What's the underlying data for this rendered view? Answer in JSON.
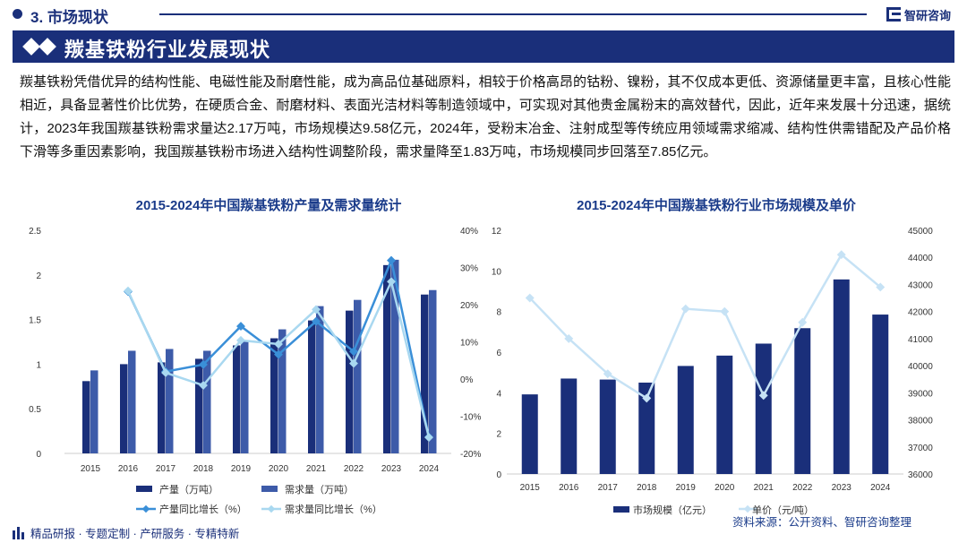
{
  "header": {
    "section_label": "3. 市场现状",
    "logo_text": "智研咨询",
    "banner_title": "羰基铁粉行业发展现状"
  },
  "body_text": "羰基铁粉凭借优异的结构性能、电磁性能及耐磨性能，成为高品位基础原料，相较于价格高昂的钴粉、镍粉，其不仅成本更低、资源储量更丰富，且核心性能相近，具备显著性价比优势，在硬质合金、耐磨材料、表面光洁材料等制造领域中，可实现对其他贵金属粉末的高效替代，因此，近年来发展十分迅速，据统计，2023年我国羰基铁粉需求量达2.17万吨，市场规模达9.58亿元，2024年，受粉末冶金、注射成型等传统应用领域需求缩减、结构性供需错配及产品价格下滑等多重因素影响，我国羰基铁粉市场进入结构性调整阶段，需求量降至1.83万吨，市场规模同步回落至7.85亿元。",
  "footer": {
    "tagline": "精品研报 · 专题定制 · 产研服务 · 专精特新",
    "source": "资料来源：公开资料、智研咨询整理"
  },
  "colors": {
    "brand": "#1a2f7a",
    "bar_production": "#1a2f7a",
    "bar_demand": "#3d5ba9",
    "line_production": "#3a8fd8",
    "line_demand": "#a9d8f0",
    "bar_market": "#1a2f7a",
    "line_price": "#c6e2f5"
  },
  "chart_data": [
    {
      "type": "bar",
      "title": "2015-2024年中国羰基铁粉产量及需求量统计",
      "categories": [
        "2015",
        "2016",
        "2017",
        "2018",
        "2019",
        "2020",
        "2021",
        "2022",
        "2023",
        "2024"
      ],
      "ylim": [
        0,
        2.5
      ],
      "yticks": [
        "0",
        "0.5",
        "1",
        "1.5",
        "2",
        "2.5"
      ],
      "y2lim": [
        -20,
        40
      ],
      "y2ticks": [
        "-20%",
        "-10%",
        "0%",
        "10%",
        "20%",
        "30%",
        "40%"
      ],
      "series": [
        {
          "name": "产量（万吨）",
          "type": "bar",
          "axis": "left",
          "values": [
            0.81,
            1.0,
            1.02,
            1.06,
            1.21,
            1.29,
            1.49,
            1.6,
            2.11,
            1.78
          ]
        },
        {
          "name": "需求量（万吨）",
          "type": "bar",
          "axis": "left",
          "values": [
            0.93,
            1.15,
            1.17,
            1.15,
            1.27,
            1.39,
            1.65,
            1.72,
            2.17,
            1.83
          ]
        },
        {
          "name": "产量同比增长（%）",
          "type": "line",
          "axis": "right",
          "values": [
            null,
            23.5,
            2.0,
            3.9,
            14.2,
            6.6,
            15.5,
            7.4,
            31.9,
            -15.6
          ]
        },
        {
          "name": "需求量同比增长（%）",
          "type": "line",
          "axis": "right",
          "values": [
            null,
            23.7,
            1.7,
            -1.7,
            10.4,
            9.4,
            18.7,
            4.2,
            26.2,
            -15.7
          ]
        }
      ]
    },
    {
      "type": "bar",
      "title": "2015-2024年中国羰基铁粉行业市场规模及单价",
      "categories": [
        "2015",
        "2016",
        "2017",
        "2018",
        "2019",
        "2020",
        "2021",
        "2022",
        "2023",
        "2024"
      ],
      "ylim": [
        0,
        12
      ],
      "yticks": [
        "0",
        "2",
        "4",
        "6",
        "8",
        "10",
        "12"
      ],
      "y2lim": [
        36000,
        45000
      ],
      "y2ticks": [
        "36000",
        "37000",
        "38000",
        "39000",
        "40000",
        "41000",
        "42000",
        "43000",
        "44000",
        "45000"
      ],
      "series": [
        {
          "name": "市场规模（亿元）",
          "type": "bar",
          "axis": "left",
          "values": [
            3.92,
            4.7,
            4.65,
            4.5,
            5.32,
            5.83,
            6.42,
            7.18,
            9.58,
            7.85
          ]
        },
        {
          "name": "单价（元/吨）",
          "type": "line",
          "axis": "right",
          "values": [
            42500,
            41000,
            39700,
            38800,
            42100,
            42000,
            38900,
            41600,
            44100,
            42900
          ]
        }
      ]
    }
  ]
}
